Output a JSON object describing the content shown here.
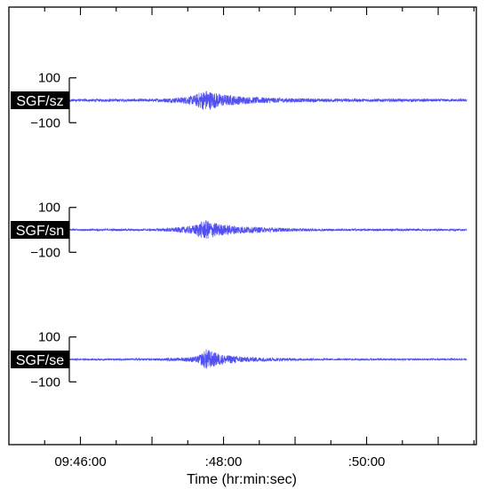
{
  "chart_data": {
    "type": "line",
    "title": "",
    "xlabel": "Time (hr:min:sec)",
    "x_tick_labels": [
      "09:46:00",
      ":48:00",
      ":50:00"
    ],
    "x_tick_seconds": [
      0,
      120,
      240
    ],
    "x_range_seconds": [
      -60,
      332
    ],
    "trace_start_seconds": -30,
    "trace_end_seconds": 324,
    "y_tick_labels": [
      "100",
      "−100"
    ],
    "y_tick_values": [
      100,
      -100
    ],
    "grid": false,
    "line_color": "#5050f0",
    "start_marker_color": "#ff4040",
    "series": [
      {
        "name": "SGF/sz",
        "ylim": [
          -220,
          220
        ],
        "noise_amplitude": 11,
        "events": [
          {
            "time_seconds": 106,
            "peak_amplitude": 88,
            "half_width_seconds": 16
          },
          {
            "time_seconds": 86,
            "peak_amplitude": 30,
            "half_width_seconds": 12
          }
        ],
        "envelope_seconds": [
          -30,
          60,
          80,
          95,
          100,
          104,
          106,
          110,
          120,
          140,
          170,
          200,
          324
        ],
        "envelope_amplitude": [
          11,
          12,
          22,
          40,
          70,
          85,
          88,
          75,
          50,
          30,
          20,
          14,
          11
        ]
      },
      {
        "name": "SGF/sn",
        "ylim": [
          -220,
          220
        ],
        "noise_amplitude": 8,
        "events": [
          {
            "time_seconds": 106,
            "peak_amplitude": 82,
            "half_width_seconds": 16
          },
          {
            "time_seconds": 86,
            "peak_amplitude": 32,
            "half_width_seconds": 12
          }
        ],
        "envelope_seconds": [
          -30,
          60,
          80,
          95,
          100,
          104,
          106,
          110,
          120,
          140,
          170,
          200,
          324
        ],
        "envelope_amplitude": [
          8,
          9,
          20,
          38,
          65,
          80,
          82,
          68,
          45,
          28,
          16,
          10,
          8
        ]
      },
      {
        "name": "SGF/se",
        "ylim": [
          -220,
          220
        ],
        "noise_amplitude": 7,
        "events": [
          {
            "time_seconds": 106,
            "peak_amplitude": 92,
            "half_width_seconds": 12
          },
          {
            "time_seconds": 86,
            "peak_amplitude": 16,
            "half_width_seconds": 10
          }
        ],
        "envelope_seconds": [
          -30,
          60,
          85,
          98,
          102,
          105,
          106,
          110,
          120,
          140,
          170,
          200,
          324
        ],
        "envelope_amplitude": [
          7,
          8,
          14,
          28,
          55,
          85,
          92,
          70,
          40,
          22,
          12,
          8,
          7
        ]
      }
    ]
  }
}
